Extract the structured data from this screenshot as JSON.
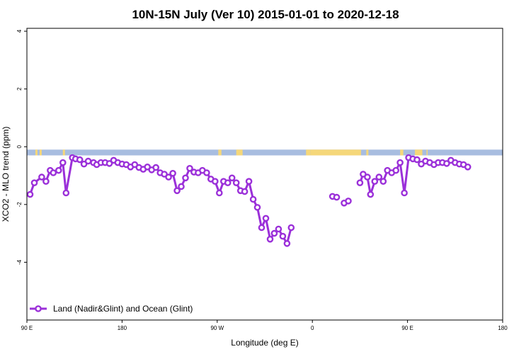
{
  "chart_data": {
    "type": "line",
    "title": "10N-15N July (Ver 10)   2015-01-01 to 2020-12-18",
    "xlabel": "Longitude (deg E)",
    "ylabel": "XCO2 - MLO trend (ppm)",
    "xlim": [
      90,
      450
    ],
    "ylim": [
      -6,
      4.1
    ],
    "x_ticks": [
      {
        "value": 90,
        "label": "90 E"
      },
      {
        "value": 180,
        "label": "180"
      },
      {
        "value": 270,
        "label": "90 W"
      },
      {
        "value": 360,
        "label": "0"
      },
      {
        "value": 450,
        "label": "90 E"
      },
      {
        "value": 540,
        "label": "180"
      }
    ],
    "x_axis_max": 540,
    "y_ticks": [
      {
        "value": -4,
        "label": "-4"
      },
      {
        "value": -2,
        "label": "-2"
      },
      {
        "value": 0,
        "label": "0"
      },
      {
        "value": 2,
        "label": "2"
      },
      {
        "value": 4,
        "label": "4"
      }
    ],
    "grid": false,
    "legend_position": "bottom-left",
    "map_strip": {
      "y_range": [
        -0.3,
        -0.1
      ],
      "ocean_color": "#a8bde0",
      "land_color": "#f5d77a",
      "land_ranges": [
        [
          98,
          100
        ],
        [
          102,
          104
        ],
        [
          124,
          126
        ],
        [
          271,
          274
        ],
        [
          288,
          294
        ],
        [
          354,
          358
        ],
        [
          358,
          406
        ],
        [
          411,
          413
        ],
        [
          443,
          446
        ],
        [
          457,
          464
        ],
        [
          468,
          469
        ]
      ]
    },
    "series": [
      {
        "name": "Land (Nadir&Glint) and Ocean (Glint)",
        "color": "#9b30d9",
        "segments": [
          {
            "x": [
              93,
              97,
              104,
              108,
              112,
              115,
              120,
              124,
              127,
              133,
              136,
              140,
              144,
              148,
              153,
              156,
              160,
              164,
              168,
              172,
              176,
              180,
              184,
              188,
              192,
              196,
              200,
              204,
              208,
              212,
              216,
              220,
              224,
              228,
              232,
              236,
              240,
              244,
              248,
              252,
              256,
              260,
              264,
              268,
              272,
              276,
              280,
              284,
              288,
              292,
              296,
              300,
              304,
              308,
              312,
              316,
              320,
              324,
              328,
              332,
              336,
              340,
              344,
              348,
              352,
              356,
              360,
              364,
              368,
              372,
              376,
              380,
              384,
              388,
              392,
              396,
              400
            ],
            "y": [
              -1.65,
              -1.25,
              -1.05,
              -1.2,
              -0.82,
              -0.9,
              -0.82,
              -0.55,
              -1.6,
              -0.38,
              -0.42,
              -0.45,
              -0.6,
              -0.5,
              -0.55,
              -0.62,
              -0.55,
              -0.55,
              -0.58,
              -0.47,
              -0.55,
              -0.6,
              -0.62,
              -0.7,
              -0.62,
              -0.72,
              -0.78,
              -0.7,
              -0.8,
              -0.72,
              -0.9,
              -0.95,
              -1.05,
              -0.92,
              -1.52,
              -1.38,
              -1.08,
              -0.75,
              -0.88,
              -0.9,
              -0.82,
              -0.9,
              -1.12,
              -1.2,
              -1.6,
              -1.2,
              -1.25,
              -1.08,
              -1.25,
              -1.52,
              -1.55,
              -1.2,
              -1.82,
              -2.1,
              -2.8,
              -2.48,
              -3.2,
              -3.0,
              -2.85,
              -3.1,
              -3.35,
              -2.8,
              null,
              null,
              null,
              null,
              null,
              null,
              null,
              null,
              null,
              null,
              null,
              null,
              null,
              null,
              null
            ]
          },
          {
            "x": [
              379,
              383
            ],
            "y": [
              -1.72,
              -1.75
            ]
          },
          {
            "x": [
              390,
              394
            ],
            "y": [
              -1.95,
              -1.88
            ]
          },
          {
            "x": [
              405,
              408,
              412,
              415,
              419,
              423,
              427,
              431,
              435,
              439,
              443,
              447,
              451,
              455,
              459,
              463,
              467,
              471,
              475,
              479,
              483,
              487,
              491,
              495,
              499,
              503,
              507
            ],
            "y": [
              -1.25,
              -0.95,
              -1.05,
              -1.65,
              -1.2,
              -1.05,
              -1.2,
              -0.82,
              -0.9,
              -0.82,
              -0.55,
              -1.6,
              -0.38,
              -0.42,
              -0.45,
              -0.6,
              -0.5,
              -0.55,
              -0.62,
              -0.55,
              -0.55,
              -0.58,
              -0.47,
              -0.55,
              -0.6,
              -0.62,
              -0.7
            ]
          }
        ]
      }
    ]
  }
}
